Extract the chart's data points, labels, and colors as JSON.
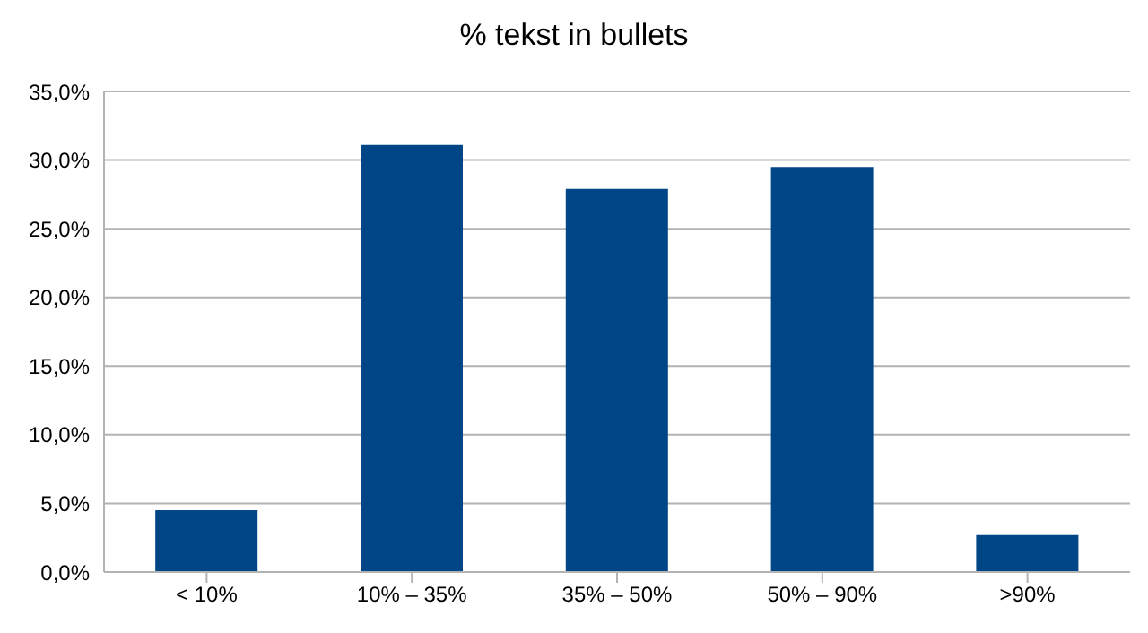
{
  "chart_data": {
    "type": "bar",
    "title": "% tekst in bullets",
    "categories": [
      "< 10%",
      "10% – 35%",
      "35% – 50%",
      "50% – 90%",
      ">90%"
    ],
    "values": [
      4.5,
      31.1,
      27.9,
      29.5,
      2.7
    ],
    "color": "#004586",
    "ylim": [
      0,
      35
    ],
    "yticks": [
      {
        "value": 0,
        "label": "0,0%"
      },
      {
        "value": 5,
        "label": "5,0%"
      },
      {
        "value": 10,
        "label": "10,0%"
      },
      {
        "value": 15,
        "label": "15,0%"
      },
      {
        "value": 20,
        "label": "20,0%"
      },
      {
        "value": 25,
        "label": "25,0%"
      },
      {
        "value": 30,
        "label": "30,0%"
      },
      {
        "value": 35,
        "label": "35,0%"
      }
    ],
    "grid": "y",
    "legend": false
  }
}
